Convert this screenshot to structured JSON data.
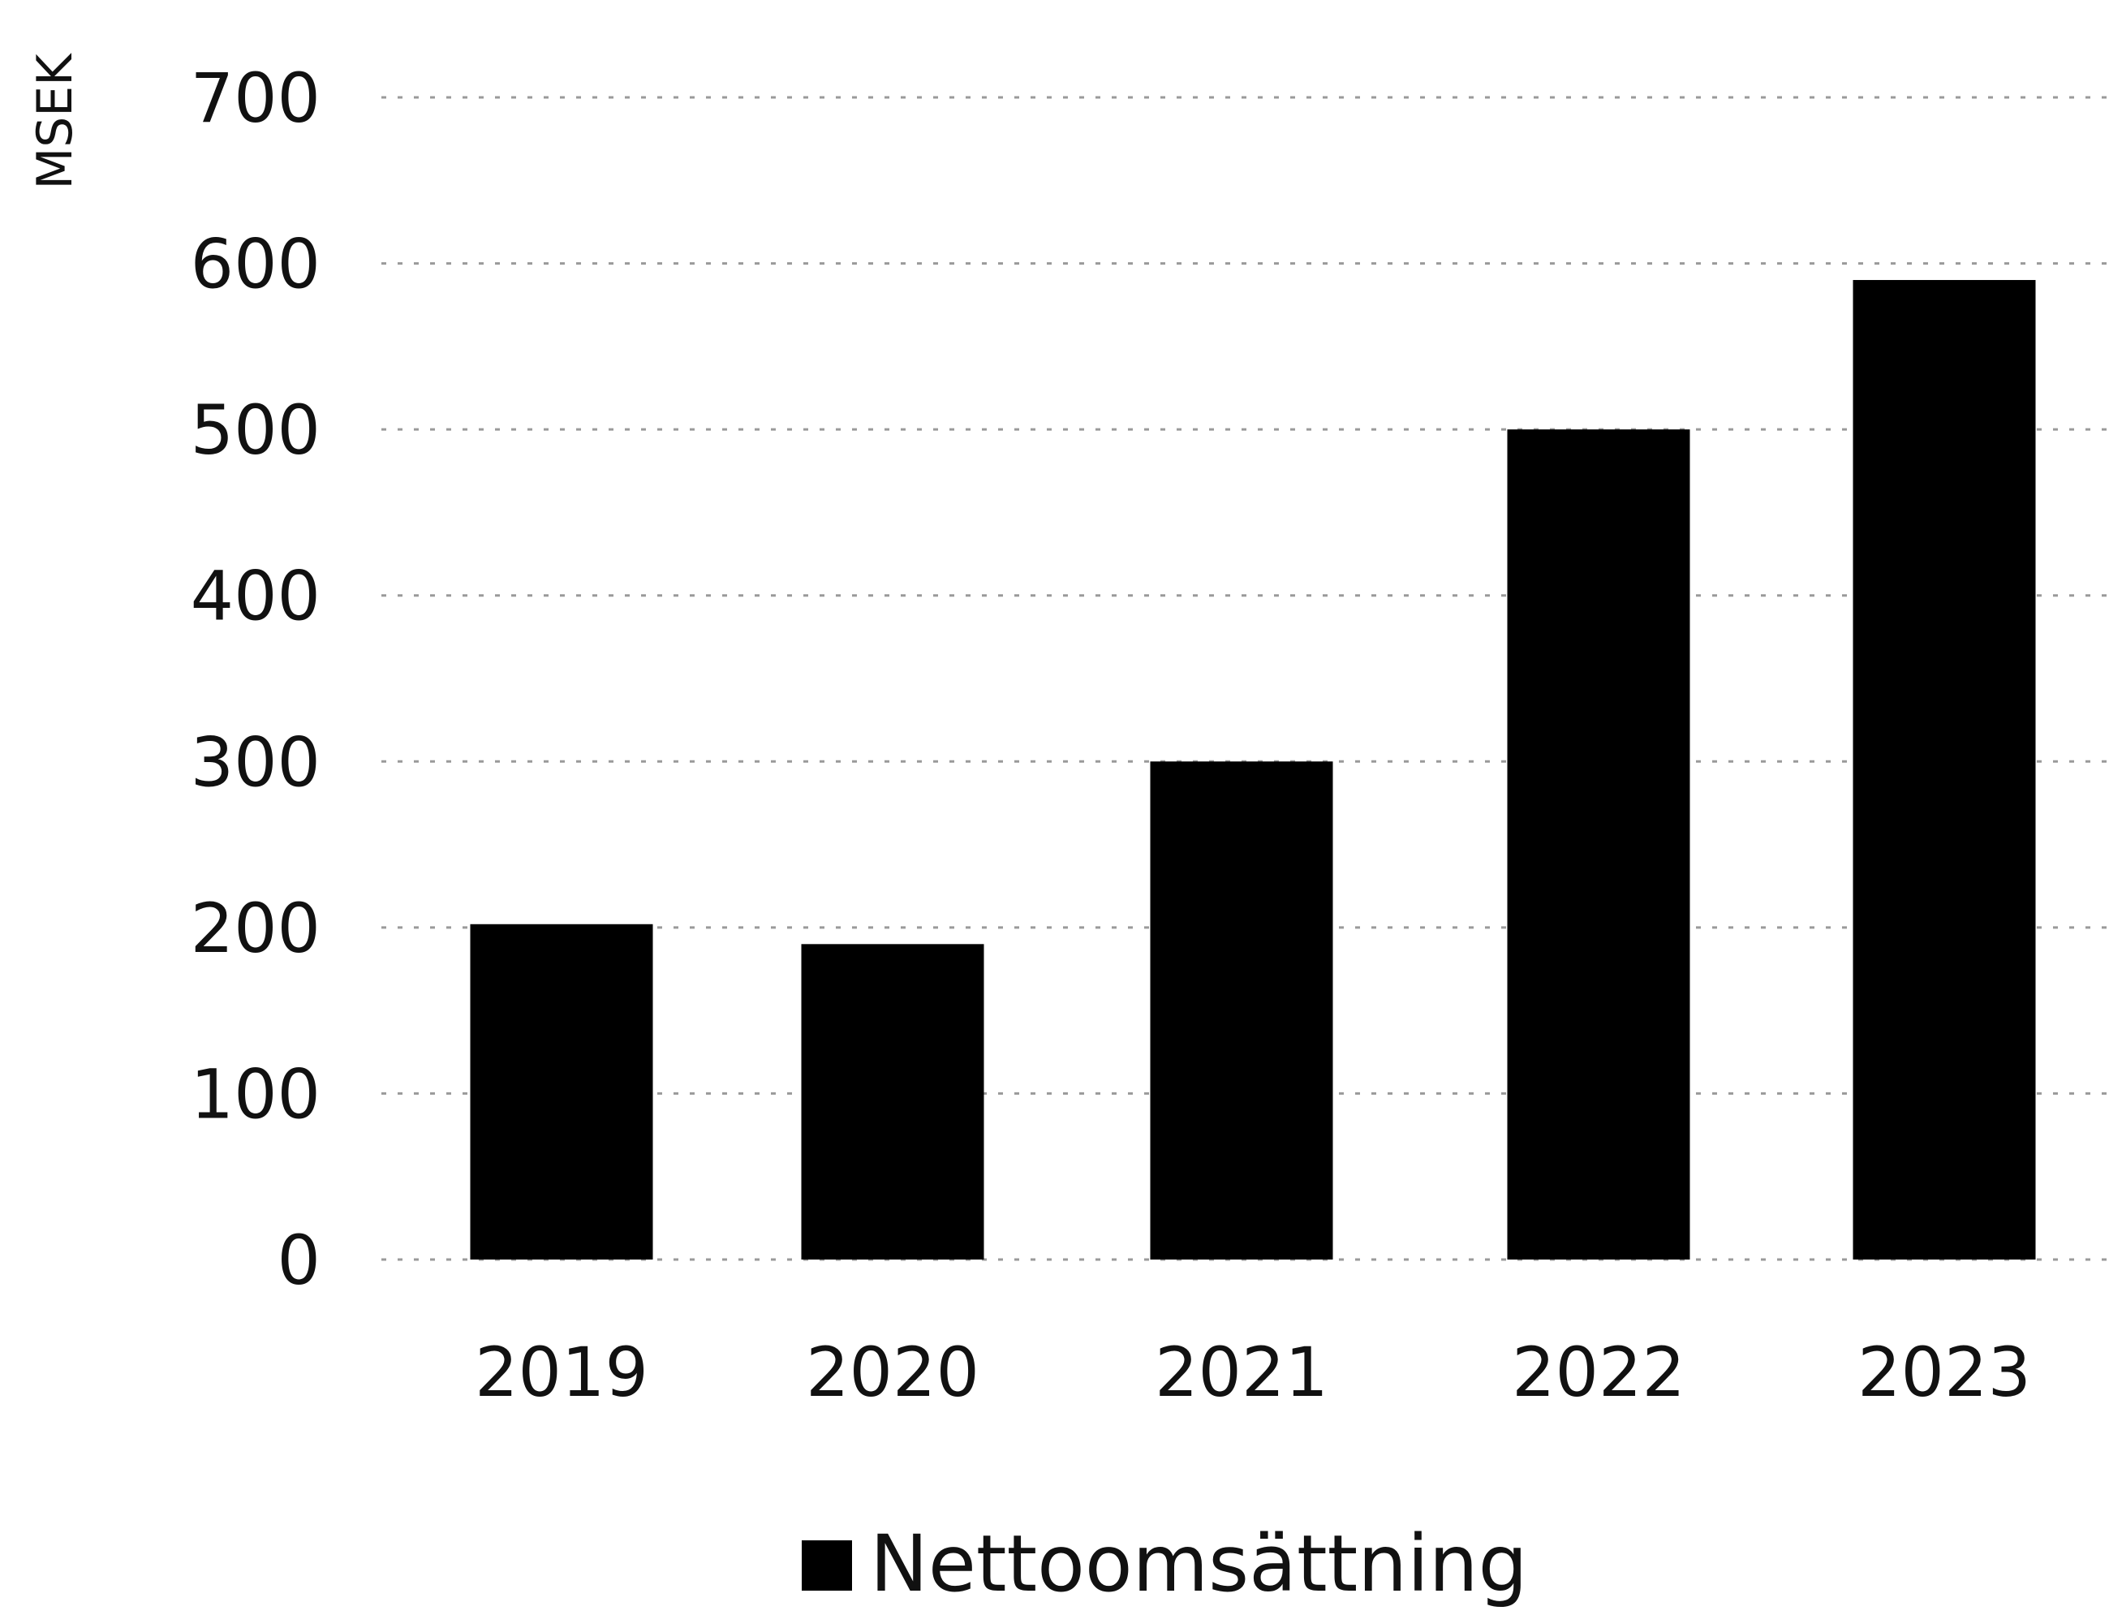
{
  "chart_data": {
    "type": "bar",
    "ylabel": "MSEK",
    "ylim": [
      0,
      700
    ],
    "yticks": [
      0,
      100,
      200,
      300,
      400,
      500,
      600,
      700
    ],
    "categories": [
      "2019",
      "2020",
      "2021",
      "2022",
      "2023"
    ],
    "series": [
      {
        "name": "Nettoomsättning",
        "values": [
          202,
          190,
          300,
          500,
          590
        ]
      }
    ],
    "grid": true,
    "legend": "bottom-center"
  },
  "colors": {
    "bar": "#000000",
    "grid": "#9a9a9a",
    "text": "#111111"
  }
}
